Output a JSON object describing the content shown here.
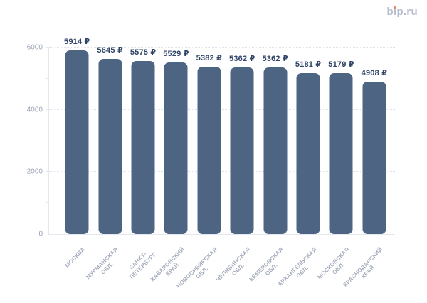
{
  "logo": {
    "text": "bip.ru"
  },
  "colors": {
    "bar": "#4d6483",
    "value": "#2e4368",
    "axis-text": "#9ba3b4",
    "xaxis-text": "#a5acbd",
    "grid": "#dee2ea",
    "axis-line": "#e4e7ed",
    "logo": "#b6bbcd",
    "logo-dot": "#ee8066",
    "bg": "#ffffff"
  },
  "chart_data": {
    "type": "bar",
    "title": "",
    "xlabel": "",
    "ylabel": "",
    "currency": "₽",
    "categories": [
      "МОСКВА",
      "МУРМАНСКАЯ\nОБЛ.",
      "САНКТ-\nПЕТЕРБУРГ",
      "ХАБАРОВСКИЙ\nКРАЙ",
      "НОВОСИБИРСКАЯ\nОБЛ.",
      "ЧЕЛЯБИНСКАЯ\nОБЛ.",
      "КЕМЕРОВСКАЯ\nОБЛ.",
      "АРХАНГЕЛЬСКАЯ\nОБЛ.",
      "МОСКОВСКАЯ\nОБЛ.",
      "КРАСНОДАРСКИЙ\nКРАЙ"
    ],
    "values": [
      5914,
      5645,
      5575,
      5529,
      5382,
      5362,
      5362,
      5181,
      5179,
      4908
    ],
    "value_labels": [
      "5914 ₽",
      "5645 ₽",
      "5575 ₽",
      "5529 ₽",
      "5382 ₽",
      "5362 ₽",
      "5362 ₽",
      "5181 ₽",
      "5179 ₽",
      "4908 ₽"
    ],
    "ylim": [
      0,
      6000
    ],
    "yticks_labeled": [
      0,
      2000,
      4000,
      6000
    ],
    "yticks_minor": [
      1000,
      3000,
      5000
    ],
    "gridlines": [
      2000,
      4000,
      6000
    ],
    "grid": "dotted-horizontal",
    "legend": "none",
    "bar_color": "#4d6483"
  }
}
